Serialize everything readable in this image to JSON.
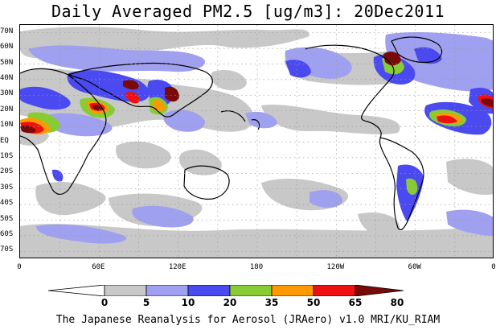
{
  "title": "Daily Averaged PM2.5 [ug/m3]: 20Dec2011",
  "footer": "The Japanese Reanalysis for Aerosol (JRAero) v1.0 MRI/KU_RIAM",
  "lat_labels": [
    "70N",
    "60N",
    "50N",
    "40N",
    "30N",
    "20N",
    "10N",
    "EQ",
    "10S",
    "20S",
    "30S",
    "40S",
    "50S",
    "60S",
    "70S"
  ],
  "lon_labels": [
    "0",
    "60E",
    "120E",
    "180",
    "120W",
    "60W",
    "0"
  ],
  "colorbar": {
    "labels": [
      "0",
      "5",
      "10",
      "20",
      "35",
      "50",
      "65",
      "80"
    ],
    "colors": [
      "#ffffff",
      "#c8c8c8",
      "#a0a0f0",
      "#4a4af0",
      "#88cc33",
      "#ff9900",
      "#ee1111",
      "#7a0a0a"
    ]
  },
  "chart_data": {
    "type": "heatmap",
    "title": "Daily Averaged PM2.5 [ug/m3]: 20Dec2011",
    "xlabel": "",
    "ylabel": "",
    "lon_range": [
      0,
      360
    ],
    "lat_range": [
      -75,
      75
    ],
    "grid": true,
    "levels": [
      0,
      5,
      10,
      20,
      35,
      50,
      65,
      80
    ]
  }
}
